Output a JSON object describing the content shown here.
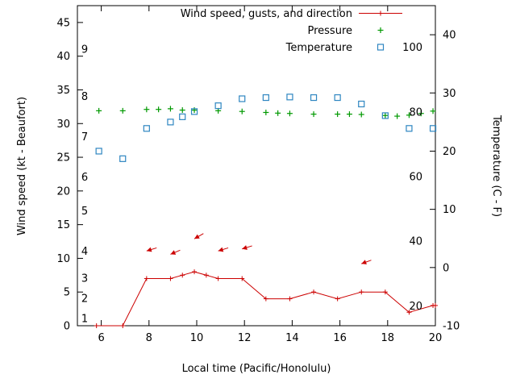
{
  "chart_data": {
    "type": "line",
    "title": "",
    "xlabel": "Local time (Pacific/Honolulu)",
    "ylabel_left": "Wind speed (kt - Beaufort)",
    "ylabel_right": "Temperature (C - F)",
    "xlim": [
      5,
      20
    ],
    "ylim_left": [
      0,
      47.5
    ],
    "ylim_right": [
      -10,
      45
    ],
    "x_ticks": [
      6,
      8,
      10,
      12,
      14,
      16,
      18,
      20
    ],
    "y_ticks_left": [
      0,
      5,
      10,
      15,
      20,
      25,
      30,
      35,
      40,
      45
    ],
    "y_ticks_right": [
      -10,
      0,
      10,
      20,
      30,
      40
    ],
    "grid": false,
    "legend_position": "top-right-inside",
    "beaufort_scale_labels": [
      {
        "label": "1",
        "kt": 1
      },
      {
        "label": "2",
        "kt": 4
      },
      {
        "label": "3",
        "kt": 7
      },
      {
        "label": "4",
        "kt": 11
      },
      {
        "label": "5",
        "kt": 17
      },
      {
        "label": "6",
        "kt": 22
      },
      {
        "label": "7",
        "kt": 28
      },
      {
        "label": "8",
        "kt": 34
      },
      {
        "label": "9",
        "kt": 41
      }
    ],
    "fahrenheit_scale_labels": [
      {
        "label": "20",
        "f": 20
      },
      {
        "label": "40",
        "f": 40
      },
      {
        "label": "60",
        "f": 60
      },
      {
        "label": "80",
        "f": 80
      },
      {
        "label": "100",
        "f": 100
      }
    ],
    "legend": [
      {
        "label": "Wind speed, gusts, and direction",
        "marker": "line-plus",
        "color": "#cc0000"
      },
      {
        "label": "Pressure",
        "marker": "plus",
        "color": "#009900"
      },
      {
        "label": "Temperature",
        "marker": "open-square",
        "color": "#2e86c1"
      }
    ],
    "series": [
      {
        "name": "wind_speed",
        "axis": "left",
        "unit": "kt",
        "color": "#cc0000",
        "style": "line-plus",
        "points": [
          [
            5.8,
            0
          ],
          [
            6.9,
            0
          ],
          [
            7.9,
            7
          ],
          [
            8.9,
            7
          ],
          [
            9.4,
            7.5
          ],
          [
            9.9,
            8
          ],
          [
            10.4,
            7.5
          ],
          [
            10.9,
            7
          ],
          [
            11.9,
            7
          ],
          [
            12.9,
            4
          ],
          [
            13.9,
            4
          ],
          [
            14.9,
            5
          ],
          [
            15.9,
            4
          ],
          [
            16.9,
            5
          ],
          [
            17.9,
            5
          ],
          [
            18.9,
            2
          ],
          [
            19.9,
            3
          ],
          [
            20,
            3
          ]
        ]
      },
      {
        "name": "wind_gust_direction",
        "axis": "left",
        "unit": "kt",
        "color": "#cc0000",
        "style": "vector",
        "vectors": [
          [
            7.9,
            11.1,
            197
          ],
          [
            8.9,
            10.6,
            203
          ],
          [
            9.9,
            12.9,
            210
          ],
          [
            10.9,
            11.1,
            197
          ],
          [
            11.9,
            11.4,
            197
          ],
          [
            16.9,
            9.2,
            200
          ]
        ]
      },
      {
        "name": "pressure",
        "axis": "left",
        "unit": "left-axis-units",
        "color": "#009900",
        "style": "plus",
        "points": [
          [
            5.9,
            31.9
          ],
          [
            6.9,
            31.9
          ],
          [
            7.9,
            32.1
          ],
          [
            8.4,
            32.1
          ],
          [
            8.9,
            32.2
          ],
          [
            9.4,
            32.0
          ],
          [
            9.9,
            32.0
          ],
          [
            10.9,
            31.9
          ],
          [
            11.9,
            31.8
          ],
          [
            12.9,
            31.65
          ],
          [
            13.4,
            31.55
          ],
          [
            13.9,
            31.5
          ],
          [
            14.9,
            31.4
          ],
          [
            15.9,
            31.4
          ],
          [
            16.4,
            31.4
          ],
          [
            16.9,
            31.35
          ],
          [
            17.9,
            31.2
          ],
          [
            18.4,
            31.1
          ],
          [
            18.9,
            31.25
          ],
          [
            19.4,
            31.5
          ],
          [
            19.9,
            31.85
          ]
        ]
      },
      {
        "name": "temperature",
        "axis": "right",
        "unit": "C",
        "color": "#2e86c1",
        "style": "open-square",
        "points": [
          [
            5.9,
            20.0
          ],
          [
            6.9,
            18.7
          ],
          [
            7.9,
            23.9
          ],
          [
            8.9,
            25.0
          ],
          [
            9.4,
            25.9
          ],
          [
            9.9,
            26.8
          ],
          [
            10.9,
            27.8
          ],
          [
            11.9,
            29.0
          ],
          [
            12.9,
            29.2
          ],
          [
            13.9,
            29.3
          ],
          [
            14.9,
            29.2
          ],
          [
            15.9,
            29.2
          ],
          [
            16.9,
            28.1
          ],
          [
            17.9,
            26.1
          ],
          [
            18.9,
            23.9
          ],
          [
            19.9,
            23.9
          ]
        ]
      }
    ]
  }
}
